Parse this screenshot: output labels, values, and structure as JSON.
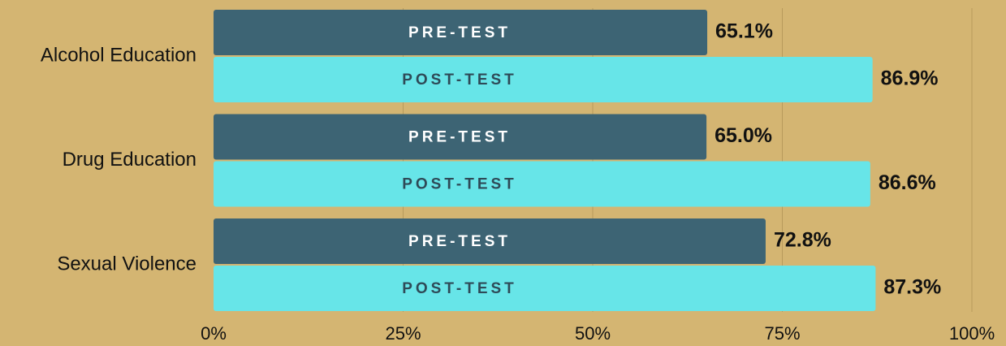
{
  "chart_data": {
    "type": "hbar",
    "categories": [
      "Alcohol Education",
      "Drug Education",
      "Sexual Violence"
    ],
    "series": [
      {
        "name": "PRE-TEST",
        "color": "#3d6474",
        "label_color": "#ffffff",
        "values": [
          65.1,
          65.0,
          72.8
        ],
        "value_labels": [
          "65.1%",
          "65.0%",
          "72.8%"
        ]
      },
      {
        "name": "POST-TEST",
        "color": "#67e5e8",
        "label_color": "#2e4a57",
        "values": [
          86.9,
          86.6,
          87.3
        ],
        "value_labels": [
          "86.9%",
          "86.6%",
          "87.3%"
        ]
      }
    ],
    "xlim": [
      0,
      100
    ],
    "xticks": [
      {
        "value": 0,
        "label": "0%"
      },
      {
        "value": 25,
        "label": "25%"
      },
      {
        "value": 50,
        "label": "50%"
      },
      {
        "value": 75,
        "label": "75%"
      },
      {
        "value": 100,
        "label": "100%"
      }
    ],
    "grid": true
  }
}
